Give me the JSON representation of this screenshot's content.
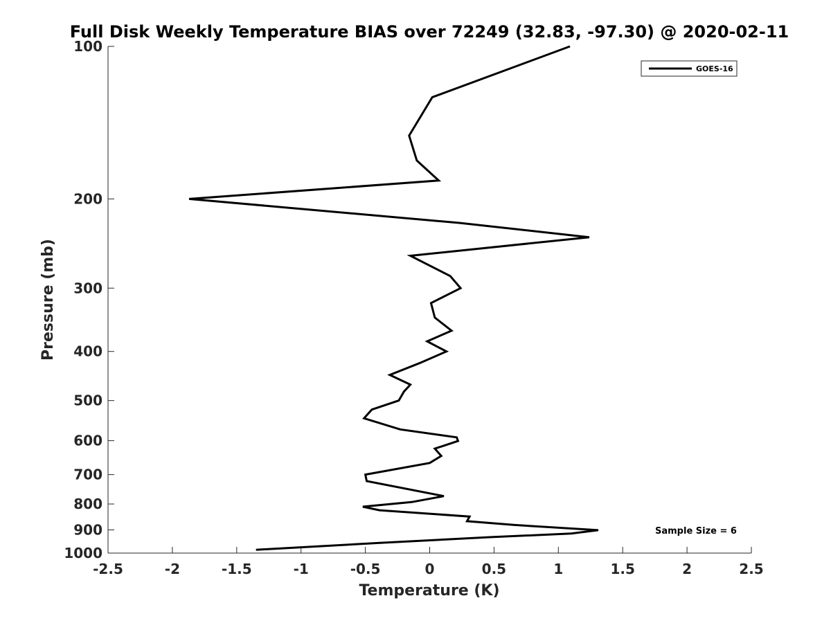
{
  "chart_data": {
    "type": "line",
    "title": "Full Disk Weekly Temperature BIAS over 72249 (32.83, -97.30) @ 2020-02-11",
    "xlabel": "Temperature (K)",
    "ylabel": "Pressure (mb)",
    "xlim": [
      -2.5,
      2.5
    ],
    "ylim": [
      100,
      1000
    ],
    "yscale": "log",
    "y_reversed": true,
    "x_ticks": [
      "-2.5",
      "-2",
      "-1.5",
      "-1",
      "-0.5",
      "0",
      "0.5",
      "1",
      "1.5",
      "2",
      "2.5"
    ],
    "y_ticks": [
      "100",
      "200",
      "300",
      "400",
      "500",
      "600",
      "700",
      "800",
      "900",
      "1000"
    ],
    "grid": false,
    "legend_position": "top-right",
    "annotation": "Sample Size = 6",
    "series": [
      {
        "name": "GOES-16",
        "color": "#000000",
        "points": [
          {
            "x": 1.09,
            "y": 100
          },
          {
            "x": 0.02,
            "y": 126
          },
          {
            "x": -0.16,
            "y": 150
          },
          {
            "x": -0.1,
            "y": 168
          },
          {
            "x": 0.07,
            "y": 184
          },
          {
            "x": -1.87,
            "y": 200
          },
          {
            "x": 0.23,
            "y": 223
          },
          {
            "x": 1.24,
            "y": 238
          },
          {
            "x": -0.15,
            "y": 259
          },
          {
            "x": 0.16,
            "y": 284
          },
          {
            "x": 0.24,
            "y": 300
          },
          {
            "x": 0.01,
            "y": 321
          },
          {
            "x": 0.04,
            "y": 343
          },
          {
            "x": 0.17,
            "y": 364
          },
          {
            "x": -0.02,
            "y": 382
          },
          {
            "x": 0.13,
            "y": 400
          },
          {
            "x": -0.08,
            "y": 422
          },
          {
            "x": -0.31,
            "y": 445
          },
          {
            "x": -0.15,
            "y": 465
          },
          {
            "x": -0.2,
            "y": 480
          },
          {
            "x": -0.24,
            "y": 500
          },
          {
            "x": -0.45,
            "y": 521
          },
          {
            "x": -0.51,
            "y": 542
          },
          {
            "x": -0.23,
            "y": 570
          },
          {
            "x": 0.21,
            "y": 591
          },
          {
            "x": 0.22,
            "y": 601
          },
          {
            "x": 0.04,
            "y": 622
          },
          {
            "x": 0.09,
            "y": 643
          },
          {
            "x": 0.0,
            "y": 664
          },
          {
            "x": -0.5,
            "y": 700
          },
          {
            "x": -0.49,
            "y": 721
          },
          {
            "x": 0.11,
            "y": 772
          },
          {
            "x": -0.14,
            "y": 793
          },
          {
            "x": -0.52,
            "y": 810
          },
          {
            "x": -0.39,
            "y": 823
          },
          {
            "x": 0.31,
            "y": 847
          },
          {
            "x": 0.29,
            "y": 865
          },
          {
            "x": 0.66,
            "y": 880
          },
          {
            "x": 1.31,
            "y": 901
          },
          {
            "x": 1.1,
            "y": 915
          },
          {
            "x": 0.48,
            "y": 930
          },
          {
            "x": -0.4,
            "y": 955
          },
          {
            "x": -1.35,
            "y": 985
          }
        ]
      }
    ]
  }
}
